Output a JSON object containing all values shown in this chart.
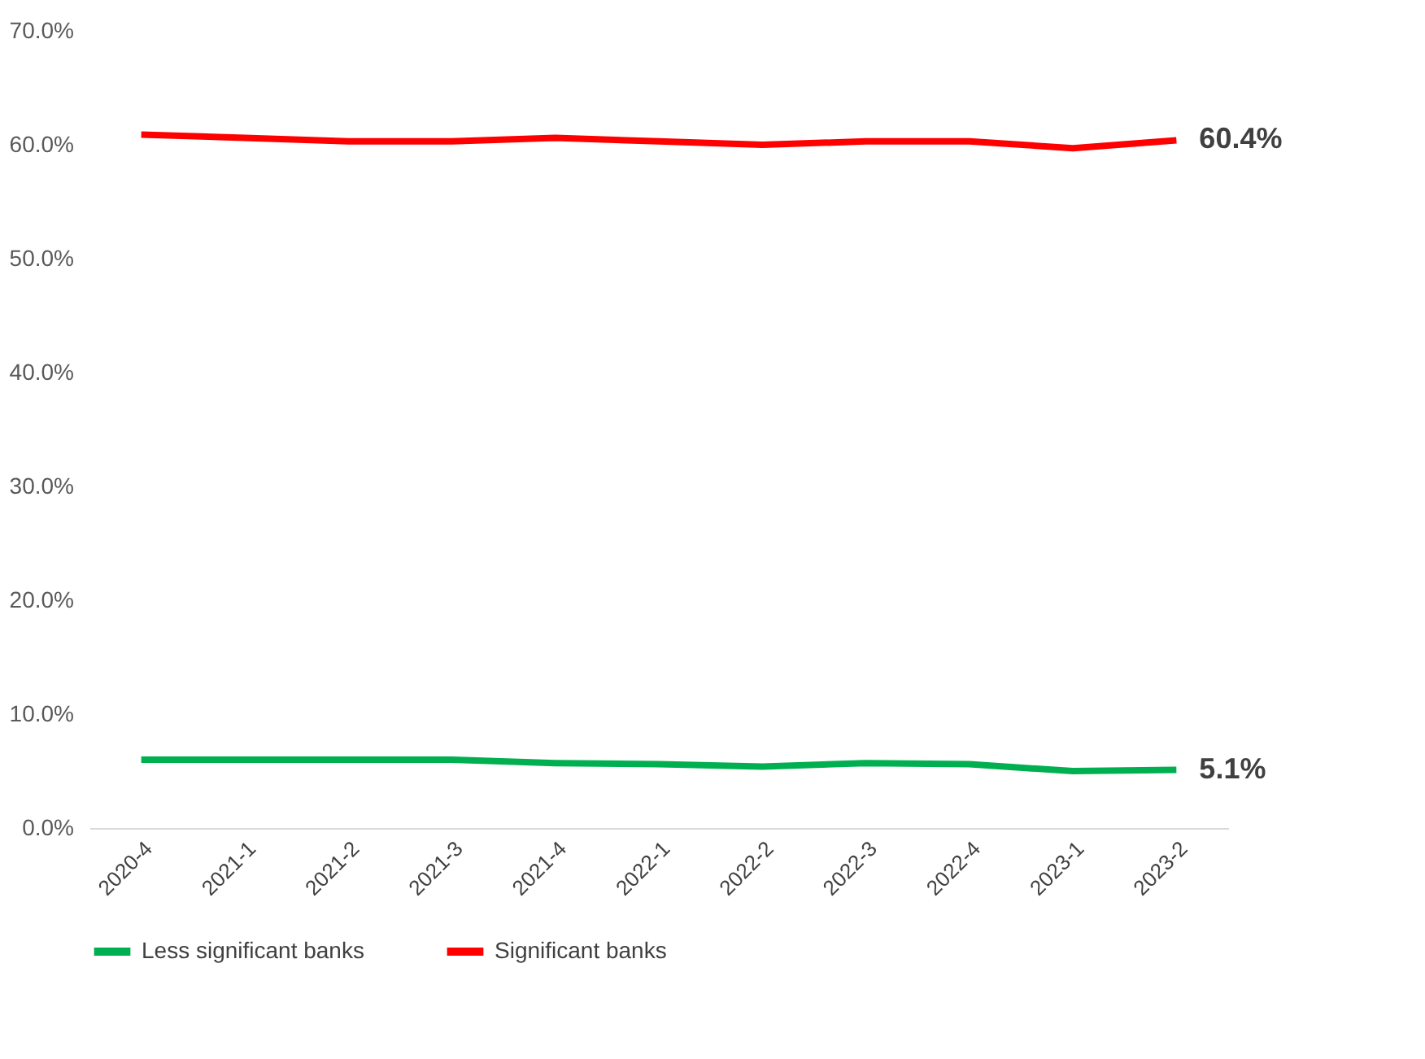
{
  "chart_data": {
    "type": "line",
    "categories": [
      "2020-4",
      "2021-1",
      "2021-2",
      "2021-3",
      "2021-4",
      "2022-1",
      "2022-2",
      "2022-3",
      "2022-4",
      "2023-1",
      "2023-2"
    ],
    "series": [
      {
        "name": "Less significant banks",
        "color": "#00b050",
        "values": [
          6.0,
          6.0,
          6.0,
          6.0,
          5.7,
          5.6,
          5.4,
          5.7,
          5.6,
          5.0,
          5.1
        ],
        "value_labels": [
          null,
          null,
          null,
          null,
          null,
          null,
          null,
          null,
          null,
          null,
          "5.1%"
        ]
      },
      {
        "name": "Significant banks",
        "color": "#ff0000",
        "values": [
          60.9,
          60.6,
          60.3,
          60.3,
          60.6,
          60.3,
          60.0,
          60.3,
          60.3,
          59.7,
          60.4
        ],
        "value_labels": [
          null,
          null,
          null,
          null,
          null,
          null,
          null,
          null,
          null,
          null,
          "60.4%"
        ]
      }
    ],
    "ylim": [
      0,
      70
    ],
    "yticks": [
      {
        "value": 0,
        "label": "0.0%"
      },
      {
        "value": 10,
        "label": "10.0%"
      },
      {
        "value": 20,
        "label": "20.0%"
      },
      {
        "value": 30,
        "label": "30.0%"
      },
      {
        "value": 40,
        "label": "40.0%"
      },
      {
        "value": 50,
        "label": "50.0%"
      },
      {
        "value": 60,
        "label": "60.0%"
      },
      {
        "value": 70,
        "label": "70.0%"
      }
    ],
    "grid": false,
    "legend": "bottom",
    "marker": "none",
    "line_style": "solid"
  }
}
